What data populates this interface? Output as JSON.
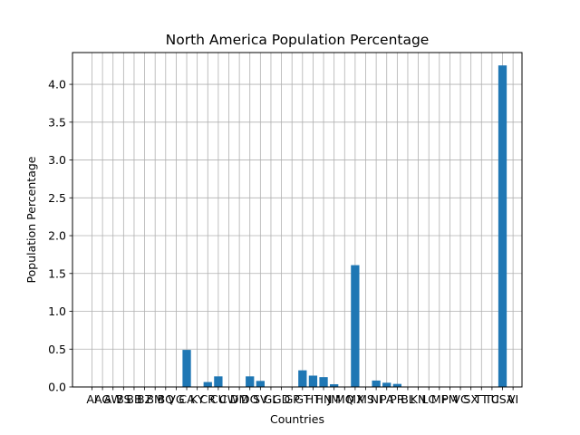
{
  "chart_data": {
    "type": "bar",
    "title": "North America Population Percentage",
    "xlabel": "Countries",
    "ylabel": "Population Percentage",
    "ylim": [
      0,
      4.42
    ],
    "yticks": [
      0.0,
      0.5,
      1.0,
      1.5,
      2.0,
      2.5,
      3.0,
      3.5,
      4.0
    ],
    "ytick_labels": [
      "0.0",
      "0.5",
      "1.0",
      "1.5",
      "2.0",
      "2.5",
      "3.0",
      "3.5",
      "4.0"
    ],
    "grid": true,
    "bar_color": "#1f77b4",
    "categories": [
      "AI",
      "AG",
      "AW",
      "BS",
      "BB",
      "BZ",
      "BM",
      "BQ",
      "VG",
      "CA",
      "KY",
      "CR",
      "CU",
      "CW",
      "DM",
      "DO",
      "SV",
      "GL",
      "GD",
      "GP",
      "GT",
      "HT",
      "HN",
      "JM",
      "MQ",
      "MX",
      "MS",
      "NI",
      "PA",
      "PR",
      "BL",
      "KN",
      "LC",
      "MF",
      "PM",
      "VC",
      "SX",
      "TT",
      "TC",
      "US",
      "VI"
    ],
    "values": [
      0.0002,
      0.0012,
      0.0014,
      0.005,
      0.0036,
      0.0052,
      0.0008,
      0.0003,
      0.0004,
      0.49,
      0.0009,
      0.065,
      0.14,
      0.0021,
      0.0009,
      0.14,
      0.08,
      0.0007,
      0.0015,
      0.005,
      0.22,
      0.15,
      0.13,
      0.036,
      0.0046,
      1.61,
      0.0001,
      0.085,
      0.056,
      0.04,
      0.0001,
      0.0007,
      0.0023,
      0.0004,
      0.0001,
      0.0014,
      0.0005,
      0.0019,
      0.0005,
      4.25,
      0.0013
    ],
    "tick_labels_visible": [
      "AI",
      "AG",
      "AW",
      "BS",
      "BB",
      "BZ",
      "BM",
      "BQ",
      "VG",
      "CA",
      "KY",
      "CR",
      "CU",
      "CW",
      "DM",
      "DO",
      "SV",
      "GL",
      "GD",
      "GP",
      "GT",
      "HT",
      "HN",
      "JM",
      "MQ",
      "MX",
      "MS",
      "NI",
      "PA",
      "PR",
      "BL",
      "KN",
      "LC",
      "MF",
      "PM",
      "VC",
      "SX",
      "TT",
      "TC",
      "USA",
      "VI"
    ]
  }
}
